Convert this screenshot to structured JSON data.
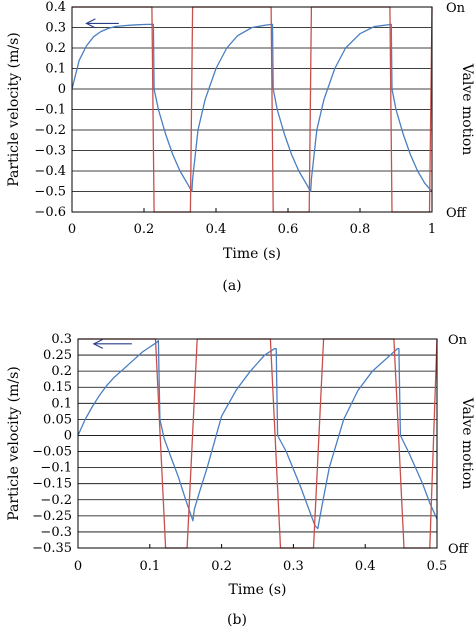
{
  "chart_data": [
    {
      "type": "line",
      "panel_label": "(a)",
      "xlabel": "Time (s)",
      "ylabel": "Particle velocity (m/s)",
      "ylabel_right": "Valve motion",
      "right_ticks": [
        "On",
        "Off"
      ],
      "xlim": [
        0,
        1
      ],
      "ylim": [
        -0.6,
        0.4
      ],
      "x_ticks": [
        0,
        0.2,
        0.4,
        0.6,
        0.8,
        1
      ],
      "x_tick_labels": [
        "0",
        "0.2",
        "0.4",
        "0.6",
        "0.8",
        "1"
      ],
      "y_ticks": [
        0.4,
        0.3,
        0.2,
        0.1,
        0,
        -0.1,
        -0.2,
        -0.3,
        -0.4,
        -0.5,
        -0.6
      ],
      "y_tick_labels": [
        "0.4",
        "0.3",
        "0.2",
        "0.1",
        "0",
        "−0.1",
        "−0.2",
        "−0.3",
        "−0.4",
        "−0.5",
        "−0.6"
      ],
      "grid": "horizontal",
      "arrow": {
        "from": [
          0.13,
          0.32
        ],
        "to": [
          0.04,
          0.32
        ]
      },
      "series": [
        {
          "color": "#4a7fc1",
          "x": [
            0,
            0.02,
            0.04,
            0.06,
            0.08,
            0.1,
            0.12,
            0.15,
            0.18,
            0.21,
            0.226,
            0.228,
            0.24,
            0.26,
            0.28,
            0.3,
            0.32,
            0.333,
            0.335,
            0.35,
            0.37,
            0.4,
            0.43,
            0.46,
            0.5,
            0.54,
            0.557,
            0.559,
            0.57,
            0.59,
            0.61,
            0.63,
            0.65,
            0.663,
            0.665,
            0.68,
            0.7,
            0.73,
            0.76,
            0.8,
            0.84,
            0.887,
            0.889,
            0.9,
            0.92,
            0.94,
            0.96,
            0.98,
            0.995,
            1.0
          ],
          "y": [
            0,
            0.14,
            0.21,
            0.255,
            0.28,
            0.295,
            0.305,
            0.31,
            0.313,
            0.315,
            0.315,
            0.0,
            -0.1,
            -0.22,
            -0.32,
            -0.4,
            -0.46,
            -0.5,
            -0.44,
            -0.2,
            -0.05,
            0.1,
            0.2,
            0.26,
            0.3,
            0.312,
            0.315,
            0.0,
            -0.1,
            -0.22,
            -0.32,
            -0.4,
            -0.46,
            -0.5,
            -0.44,
            -0.2,
            -0.05,
            0.1,
            0.2,
            0.27,
            0.305,
            0.315,
            0.0,
            -0.1,
            -0.22,
            -0.32,
            -0.4,
            -0.46,
            -0.49,
            -0.5
          ]
        },
        {
          "color": "#c8504c",
          "x": [
            0,
            0.222,
            0.228,
            0.329,
            0.335,
            0.553,
            0.559,
            0.659,
            0.665,
            0.883,
            0.889,
            0.993,
            1.0
          ],
          "y": [
            0.4,
            0.4,
            -0.6,
            -0.6,
            0.4,
            0.4,
            -0.6,
            -0.6,
            0.4,
            0.4,
            -0.6,
            -0.6,
            0.4
          ]
        }
      ]
    },
    {
      "type": "line",
      "panel_label": "(b)",
      "xlabel": "Time (s)",
      "ylabel": "Particle velocity (m/s)",
      "ylabel_right": "Valve motion",
      "right_ticks": [
        "On",
        "Off"
      ],
      "xlim": [
        0,
        0.5
      ],
      "ylim": [
        -0.35,
        0.3
      ],
      "x_ticks": [
        0,
        0.1,
        0.2,
        0.3,
        0.4,
        0.5
      ],
      "x_tick_labels": [
        "0",
        "0.1",
        "0.2",
        "0.3",
        "0.4",
        "0.5"
      ],
      "y_ticks": [
        0.3,
        0.25,
        0.2,
        0.15,
        0.1,
        0.05,
        0,
        -0.05,
        -0.1,
        -0.15,
        -0.2,
        -0.25,
        -0.3,
        -0.35
      ],
      "y_tick_labels": [
        "0.3",
        "0.25",
        "0.2",
        "0.15",
        "0.1",
        "0.05",
        "0",
        "−0.05",
        "−0.1",
        "−0.15",
        "−0.2",
        "−0.25",
        "−0.3",
        "−0.35"
      ],
      "grid": "horizontal",
      "arrow": {
        "from": [
          0.075,
          0.285
        ],
        "to": [
          0.022,
          0.285
        ]
      },
      "series": [
        {
          "color": "#4a7fc1",
          "x": [
            0,
            0.01,
            0.02,
            0.03,
            0.04,
            0.05,
            0.06,
            0.07,
            0.08,
            0.09,
            0.1,
            0.11,
            0.112,
            0.114,
            0.12,
            0.13,
            0.14,
            0.15,
            0.16,
            0.162,
            0.166,
            0.17,
            0.18,
            0.19,
            0.2,
            0.22,
            0.24,
            0.26,
            0.274,
            0.276,
            0.278,
            0.29,
            0.31,
            0.33,
            0.334,
            0.338,
            0.35,
            0.37,
            0.39,
            0.41,
            0.43,
            0.445,
            0.447,
            0.449,
            0.46,
            0.47,
            0.48,
            0.49,
            0.5
          ],
          "y": [
            0,
            0.05,
            0.09,
            0.125,
            0.155,
            0.18,
            0.2,
            0.22,
            0.24,
            0.26,
            0.275,
            0.29,
            0.295,
            0.05,
            -0.01,
            -0.07,
            -0.13,
            -0.2,
            -0.265,
            -0.23,
            -0.2,
            -0.17,
            -0.1,
            -0.02,
            0.06,
            0.14,
            0.2,
            0.25,
            0.27,
            0.27,
            0.0,
            -0.05,
            -0.16,
            -0.28,
            -0.29,
            -0.24,
            -0.1,
            0.05,
            0.14,
            0.2,
            0.24,
            0.27,
            0.27,
            0.0,
            -0.05,
            -0.1,
            -0.15,
            -0.21,
            -0.26
          ]
        },
        {
          "color": "#c8504c",
          "x": [
            0,
            0.108,
            0.122,
            0.152,
            0.166,
            0.268,
            0.282,
            0.328,
            0.342,
            0.44,
            0.454,
            0.49,
            0.5
          ],
          "y": [
            0.3,
            0.3,
            -0.35,
            -0.35,
            0.3,
            0.3,
            -0.35,
            -0.35,
            0.3,
            0.3,
            -0.35,
            -0.35,
            0.3
          ]
        }
      ]
    }
  ]
}
